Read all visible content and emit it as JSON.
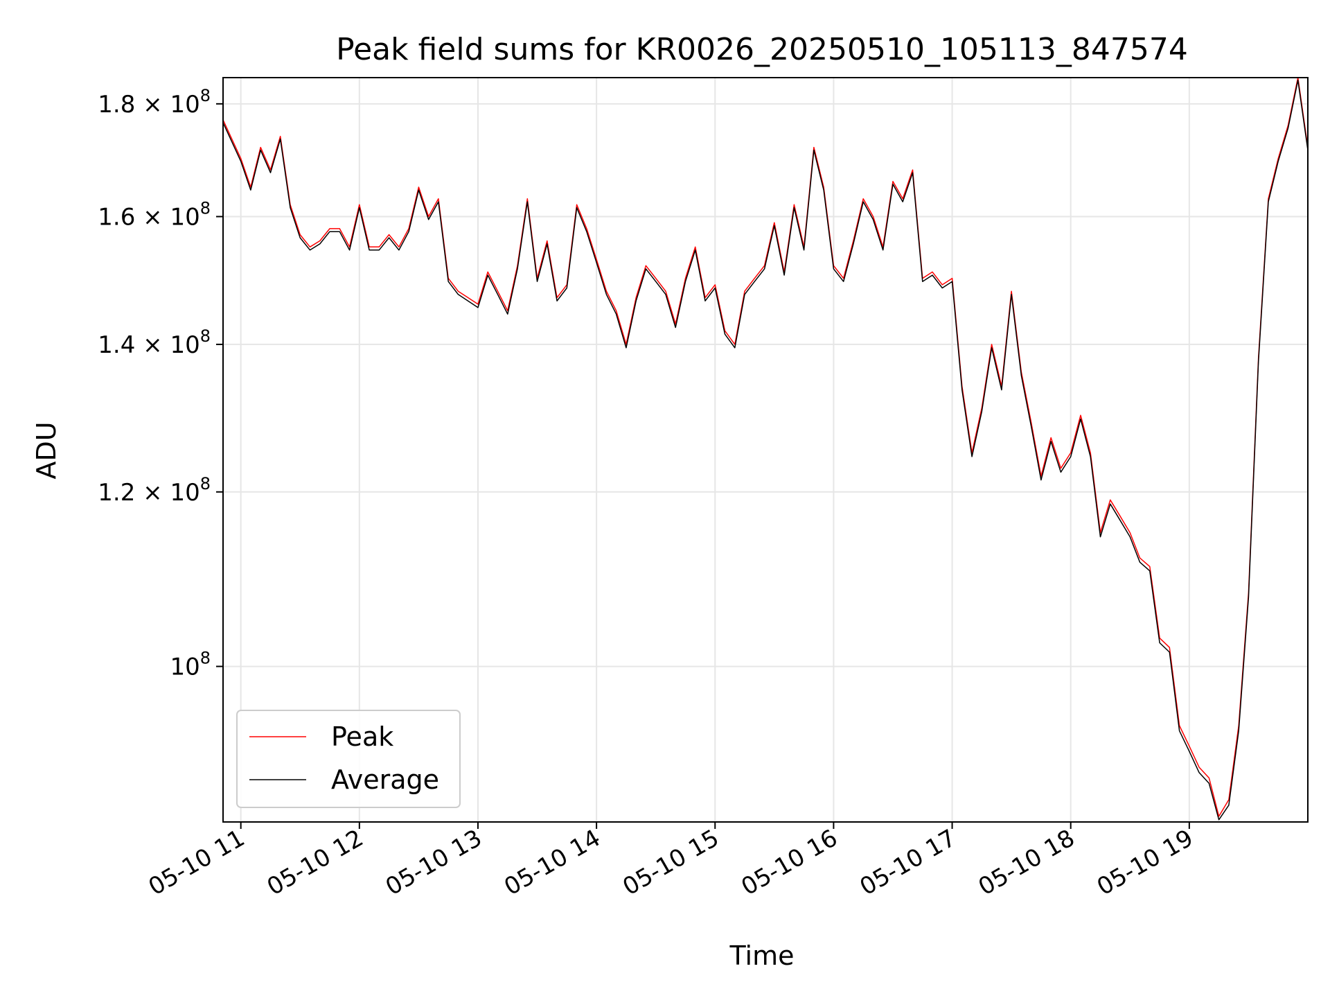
{
  "chart_data": {
    "type": "line",
    "title": "Peak field sums for KR0026_20250510_105113_847574",
    "xlabel": "Time",
    "ylabel": "ADU",
    "x_scale": "time",
    "y_scale": "log",
    "xlim": [
      "2025-05-10 10:51",
      "2025-05-10 20:00"
    ],
    "ylim": [
      85000000,
      185000000
    ],
    "grid": true,
    "legend_position": "lower-left",
    "x_ticks": [
      "05-10 11",
      "05-10 12",
      "05-10 13",
      "05-10 14",
      "05-10 15",
      "05-10 16",
      "05-10 17",
      "05-10 18",
      "05-10 19"
    ],
    "y_ticks": [
      {
        "value": 100000000,
        "label": "10",
        "exp": "8"
      },
      {
        "value": 120000000,
        "label": "1.2 × 10",
        "exp": "8"
      },
      {
        "value": 140000000,
        "label": "1.4 × 10",
        "exp": "8"
      },
      {
        "value": 160000000,
        "label": "1.6 × 10",
        "exp": "8"
      },
      {
        "value": 180000000,
        "label": "1.8 × 10",
        "exp": "8"
      }
    ],
    "x": [
      "10:51",
      "11:00",
      "11:05",
      "11:10",
      "11:15",
      "11:20",
      "11:25",
      "11:30",
      "11:35",
      "11:40",
      "11:45",
      "11:50",
      "11:55",
      "12:00",
      "12:05",
      "12:10",
      "12:15",
      "12:20",
      "12:25",
      "12:30",
      "12:35",
      "12:40",
      "12:45",
      "12:50",
      "12:55",
      "13:00",
      "13:05",
      "13:10",
      "13:15",
      "13:20",
      "13:25",
      "13:30",
      "13:35",
      "13:40",
      "13:45",
      "13:50",
      "13:55",
      "14:00",
      "14:05",
      "14:10",
      "14:15",
      "14:20",
      "14:25",
      "14:30",
      "14:35",
      "14:40",
      "14:45",
      "14:50",
      "14:55",
      "15:00",
      "15:05",
      "15:10",
      "15:15",
      "15:20",
      "15:25",
      "15:30",
      "15:35",
      "15:40",
      "15:45",
      "15:50",
      "15:55",
      "16:00",
      "16:05",
      "16:10",
      "16:15",
      "16:20",
      "16:25",
      "16:30",
      "16:35",
      "16:40",
      "16:45",
      "16:50",
      "16:55",
      "17:00",
      "17:05",
      "17:10",
      "17:15",
      "17:20",
      "17:25",
      "17:30",
      "17:35",
      "17:40",
      "17:45",
      "17:50",
      "17:55",
      "18:00",
      "18:05",
      "18:10",
      "18:15",
      "18:20",
      "18:25",
      "18:30",
      "18:35",
      "18:40",
      "18:45",
      "18:50",
      "18:55",
      "19:00",
      "19:05",
      "19:10",
      "19:15",
      "19:20",
      "19:25",
      "19:30",
      "19:35",
      "19:40",
      "19:45",
      "19:50",
      "19:55",
      "20:00"
    ],
    "series": [
      {
        "name": "Peak",
        "color": "#ff0000",
        "values": [
          177000000,
          170000000,
          165000000,
          172000000,
          168000000,
          174000000,
          162000000,
          157000000,
          155000000,
          156000000,
          158000000,
          158000000,
          155000000,
          162000000,
          155000000,
          155000000,
          157000000,
          155000000,
          158000000,
          165000000,
          160000000,
          163000000,
          150000000,
          148000000,
          147000000,
          146000000,
          151000000,
          148000000,
          145000000,
          152000000,
          163000000,
          150000000,
          156000000,
          147000000,
          149000000,
          162000000,
          158000000,
          153000000,
          148000000,
          145000000,
          140000000,
          147000000,
          152000000,
          150000000,
          148000000,
          143000000,
          150000000,
          155000000,
          147000000,
          149000000,
          142000000,
          140000000,
          148000000,
          150000000,
          152000000,
          159000000,
          151000000,
          162000000,
          155000000,
          172000000,
          165000000,
          152000000,
          150000000,
          156000000,
          163000000,
          160000000,
          155000000,
          166000000,
          163000000,
          168000000,
          150000000,
          151000000,
          149000000,
          150000000,
          134000000,
          125000000,
          131000000,
          140000000,
          134000000,
          148000000,
          136000000,
          129000000,
          122000000,
          127000000,
          123000000,
          125000000,
          130000000,
          125000000,
          115000000,
          119000000,
          117000000,
          115000000,
          112000000,
          111000000,
          103000000,
          102000000,
          94000000,
          92000000,
          90000000,
          89000000,
          85500000,
          87000000,
          94000000,
          108000000,
          138000000,
          163000000,
          170000000,
          176000000,
          185000000,
          172000000
        ],
        "line_width": 1.5
      },
      {
        "name": "Average",
        "color": "#000000",
        "values": [
          176500000,
          169500000,
          164500000,
          171500000,
          167500000,
          173500000,
          161500000,
          156500000,
          154500000,
          155500000,
          157500000,
          157500000,
          154500000,
          161500000,
          154500000,
          154500000,
          156500000,
          154500000,
          157500000,
          164500000,
          159500000,
          162500000,
          149500000,
          147500000,
          146500000,
          145500000,
          150500000,
          147500000,
          144500000,
          151500000,
          162500000,
          149500000,
          155500000,
          146500000,
          148500000,
          161500000,
          157500000,
          152500000,
          147500000,
          144500000,
          139500000,
          146500000,
          151500000,
          149500000,
          147500000,
          142500000,
          149500000,
          154500000,
          146500000,
          148500000,
          141500000,
          139500000,
          147500000,
          149500000,
          151500000,
          158500000,
          150500000,
          161500000,
          154500000,
          171500000,
          164500000,
          151500000,
          149500000,
          155500000,
          162500000,
          159500000,
          154500000,
          165500000,
          162500000,
          167500000,
          149500000,
          150500000,
          148500000,
          149500000,
          133500000,
          124500000,
          130500000,
          139500000,
          133500000,
          147500000,
          135500000,
          128500000,
          121500000,
          126500000,
          122500000,
          124500000,
          129500000,
          124500000,
          114500000,
          118500000,
          116500000,
          114500000,
          111500000,
          110500000,
          102500000,
          101500000,
          93500000,
          91500000,
          89500000,
          88500000,
          85200000,
          86500000,
          93500000,
          107500000,
          137500000,
          162500000,
          169500000,
          175500000,
          184500000,
          171500000
        ],
        "line_width": 1.5
      }
    ]
  }
}
